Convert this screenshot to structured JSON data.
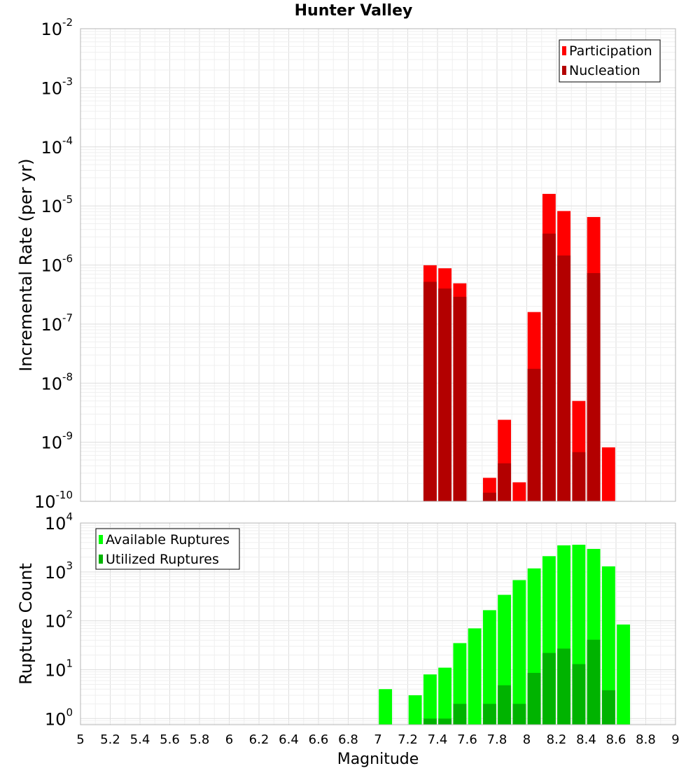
{
  "chart_data": [
    {
      "type": "bar",
      "title": "Hunter Valley",
      "xlabel": "",
      "ylabel": "Incremental Rate (per yr)",
      "xlim": [
        5,
        9
      ],
      "ylim": [
        1e-10,
        0.01
      ],
      "yscale": "log",
      "y_ticks": [
        {
          "base": "10",
          "exp": "-10"
        },
        {
          "base": "10",
          "exp": "-9"
        },
        {
          "base": "10",
          "exp": "-8"
        },
        {
          "base": "10",
          "exp": "-7"
        },
        {
          "base": "10",
          "exp": "-6"
        },
        {
          "base": "10",
          "exp": "-5"
        },
        {
          "base": "10",
          "exp": "-4"
        },
        {
          "base": "10",
          "exp": "-3"
        },
        {
          "base": "10",
          "exp": "-2"
        }
      ],
      "grid": true,
      "legend_position": "top-right",
      "bar_width": 0.1,
      "series": [
        {
          "name": "Participation",
          "color": "#ff0000",
          "x": [
            7.35,
            7.45,
            7.55,
            7.75,
            7.85,
            7.95,
            8.05,
            8.15,
            8.25,
            8.35,
            8.45,
            8.55
          ],
          "values": [
            9.9e-07,
            8.8e-07,
            4.9e-07,
            2.5e-10,
            2.4e-09,
            2.1e-10,
            1.6e-07,
            1.6e-05,
            8.2e-06,
            5e-09,
            6.5e-06,
            8.2e-10
          ]
        },
        {
          "name": "Nucleation",
          "color": "#b30000",
          "x": [
            7.35,
            7.45,
            7.55,
            7.75,
            7.85,
            8.05,
            8.15,
            8.25,
            8.35,
            8.45
          ],
          "values": [
            5.2e-07,
            4e-07,
            2.9e-07,
            1.4e-10,
            4.4e-10,
            1.75e-08,
            3.4e-06,
            1.45e-06,
            6.8e-10,
            7.3e-07
          ]
        }
      ]
    },
    {
      "type": "bar",
      "title": "",
      "xlabel": "Magnitude",
      "ylabel": "Rupture Count",
      "xlim": [
        5,
        9
      ],
      "ylim": [
        0.75,
        10000
      ],
      "yscale": "log",
      "y_ticks": [
        {
          "base": "10",
          "exp": "0"
        },
        {
          "base": "10",
          "exp": "1"
        },
        {
          "base": "10",
          "exp": "2"
        },
        {
          "base": "10",
          "exp": "3"
        },
        {
          "base": "10",
          "exp": "4"
        }
      ],
      "x_ticks": [
        "5",
        "5.2",
        "5.4",
        "5.6",
        "5.8",
        "6",
        "6.2",
        "6.4",
        "6.6",
        "6.8",
        "7",
        "7.2",
        "7.4",
        "7.6",
        "7.8",
        "8",
        "8.2",
        "8.4",
        "8.6",
        "8.8",
        "9"
      ],
      "grid": true,
      "legend_position": "top-left",
      "bar_width": 0.1,
      "series": [
        {
          "name": "Available Ruptures",
          "color": "#00ff00",
          "x": [
            7.05,
            7.25,
            7.35,
            7.45,
            7.55,
            7.65,
            7.75,
            7.85,
            7.95,
            8.05,
            8.15,
            8.25,
            8.35,
            8.45,
            8.55,
            8.65
          ],
          "values": [
            4,
            3,
            8,
            11,
            35,
            70,
            165,
            340,
            680,
            1180,
            2100,
            3500,
            3600,
            2950,
            1300,
            84
          ]
        },
        {
          "name": "Utilized Ruptures",
          "color": "#00b300",
          "x": [
            7.35,
            7.45,
            7.55,
            7.75,
            7.85,
            7.95,
            8.05,
            8.15,
            8.25,
            8.35,
            8.45,
            8.55
          ],
          "values": [
            1,
            1,
            2,
            2,
            4.8,
            2,
            8.6,
            22,
            27,
            13,
            41,
            3.8
          ]
        }
      ]
    }
  ]
}
